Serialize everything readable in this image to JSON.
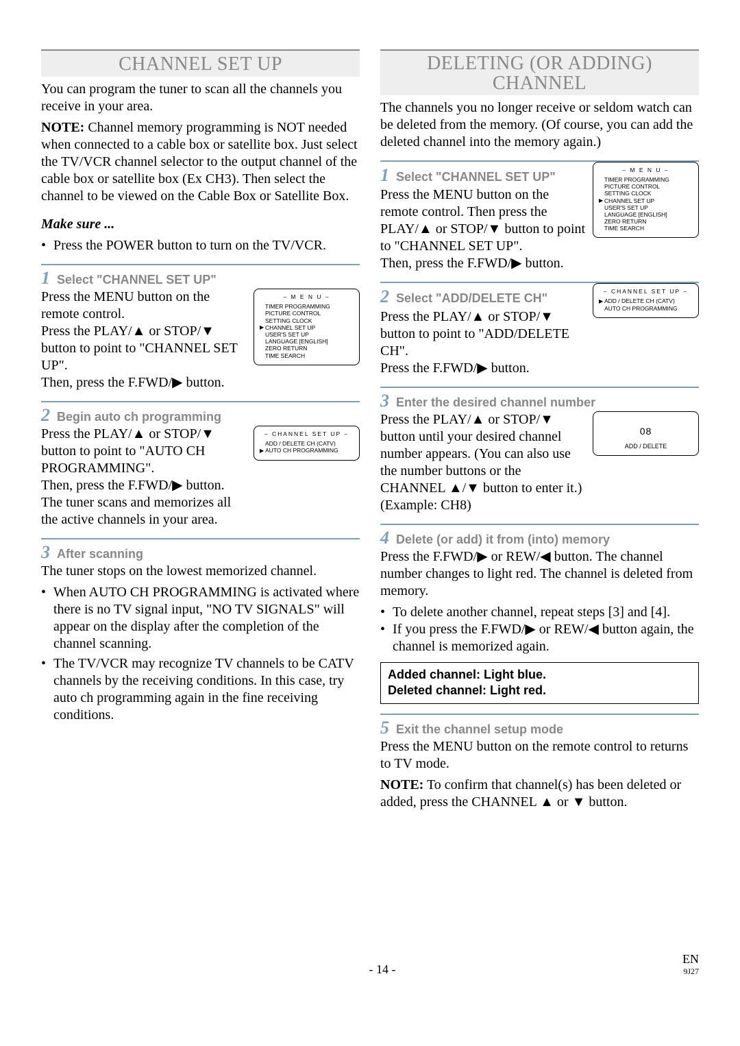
{
  "left": {
    "title": "CHANNEL SET UP",
    "intro1": "You can program the tuner to scan all the channels you receive in your area.",
    "note_label": "NOTE:",
    "note_text": " Channel memory programming is NOT needed when connected to a cable box or satellite box. Just select the TV/VCR channel selector to the output channel of the cable box or satellite box (Ex CH3). Then select the channel to be viewed on the Cable Box or Satellite Box.",
    "make_sure": "Make sure ...",
    "make_sure_bullet": "Press the POWER button to turn on the TV/VCR.",
    "step1": {
      "num": "1",
      "label": "Select \"CHANNEL SET UP\"",
      "p1": "Press the MENU button on the remote control.",
      "p2a": "Press the PLAY/",
      "p2b": " or STOP/",
      "p2c": " button to point to \"CHANNEL SET UP\".",
      "p3a": "Then, press the F.FWD/",
      "p3b": " button."
    },
    "step2": {
      "num": "2",
      "label": "Begin auto ch programming",
      "p1a": "Press the PLAY/",
      "p1b": " or STOP/",
      "p1c": " button to point to \"AUTO CH PROGRAMMING\".",
      "p2a": "Then, press the F.FWD/",
      "p2b": " button.",
      "p3": "The tuner scans and memorizes all the active channels in your area."
    },
    "step3": {
      "num": "3",
      "label": "After scanning",
      "p1": "The tuner stops on the lowest memorized channel.",
      "b1": "When AUTO CH PROGRAMMING is activated where there is no TV signal input, \"NO TV SIGNALS\" will appear on the display after the completion of the channel scanning.",
      "b2": "The TV/VCR may recognize TV channels to be CATV channels by the receiving conditions. In this case, try auto ch programming again in the fine receiving conditions."
    },
    "menu_box": {
      "title": "– M E N U –",
      "items": [
        "TIMER PROGRAMMING",
        "PICTURE CONTROL",
        "SETTING CLOCK",
        "CHANNEL SET UP",
        "USER'S SET UP",
        "LANGUAGE   [ENGLISH]",
        "ZERO RETURN",
        "TIME SEARCH"
      ],
      "selected_index": 3
    },
    "ch_box": {
      "title": "– CHANNEL SET UP –",
      "items": [
        "ADD / DELETE CH (CATV)",
        "AUTO CH PROGRAMMING"
      ],
      "selected_index": 1
    }
  },
  "right": {
    "title": "DELETING (OR ADDING) CHANNEL",
    "intro": "The channels you no longer receive or seldom watch can be deleted from the memory. (Of course, you can add the deleted channel into the memory again.)",
    "step1": {
      "num": "1",
      "label": "Select \"CHANNEL SET UP\"",
      "p1a": "Press the MENU button on the remote control. Then press the PLAY/",
      "p1b": " or STOP/",
      "p1c": " button to point to \"CHANNEL SET UP\".",
      "p2a": "Then, press the F.FWD/",
      "p2b": " button."
    },
    "step2": {
      "num": "2",
      "label": "Select \"ADD/DELETE CH\"",
      "p1a": "Press the PLAY/",
      "p1b": " or STOP/",
      "p1c": " button to point to \"ADD/DELETE CH\".",
      "p2a": "Press the F.FWD/",
      "p2b": " button."
    },
    "step3": {
      "num": "3",
      "label": "Enter the desired channel number",
      "p1a": "Press the PLAY/",
      "p1b": " or STOP/",
      "p1c": " button until your desired channel number appears. (You can also use the number buttons  or the CHANNEL ",
      "p1d": "/",
      "p1e": " button to enter it.) (Example: CH8)"
    },
    "step4": {
      "num": "4",
      "label": "Delete (or add) it from (into) memory",
      "p1a": "Press the F.FWD/",
      "p1b": " or REW/",
      "p1c": " button. The channel number changes to light red. The channel is deleted from memory.",
      "b1": "To delete another channel, repeat steps [3] and [4].",
      "b2a": "If you press the F.FWD/",
      "b2b": " or REW/",
      "b2c": " button again, the channel is memorized again."
    },
    "callout": {
      "l1": "Added channel: Light blue.",
      "l2": "Deleted channel: Light red."
    },
    "step5": {
      "num": "5",
      "label": "Exit the channel setup mode",
      "p1": "Press the MENU button on the remote control to returns to TV mode.",
      "note_label": "NOTE:",
      "note_a": " To confirm that channel(s) has been deleted or added, press the CHANNEL ",
      "note_b": " or ",
      "note_c": " button."
    },
    "menu_box": {
      "title": "– M E N U –",
      "items": [
        "TIMER PROGRAMMING",
        "PICTURE CONTROL",
        "SETTING CLOCK",
        "CHANNEL SET UP",
        "USER'S SET UP",
        "LANGUAGE   [ENGLISH]",
        "ZERO RETURN",
        "TIME SEARCH"
      ],
      "selected_index": 3
    },
    "ch_box": {
      "title": "– CHANNEL SET UP –",
      "items": [
        "ADD / DELETE CH (CATV)",
        "AUTO CH PROGRAMMING"
      ],
      "selected_index": 0
    },
    "num_box": {
      "big": "08",
      "sub": "ADD / DELETE"
    }
  },
  "footer": {
    "page": "- 14 -",
    "lang": "EN",
    "code": "9J27"
  },
  "glyphs": {
    "up": "▲",
    "down": "▼",
    "right": "▶",
    "left": "◀"
  }
}
